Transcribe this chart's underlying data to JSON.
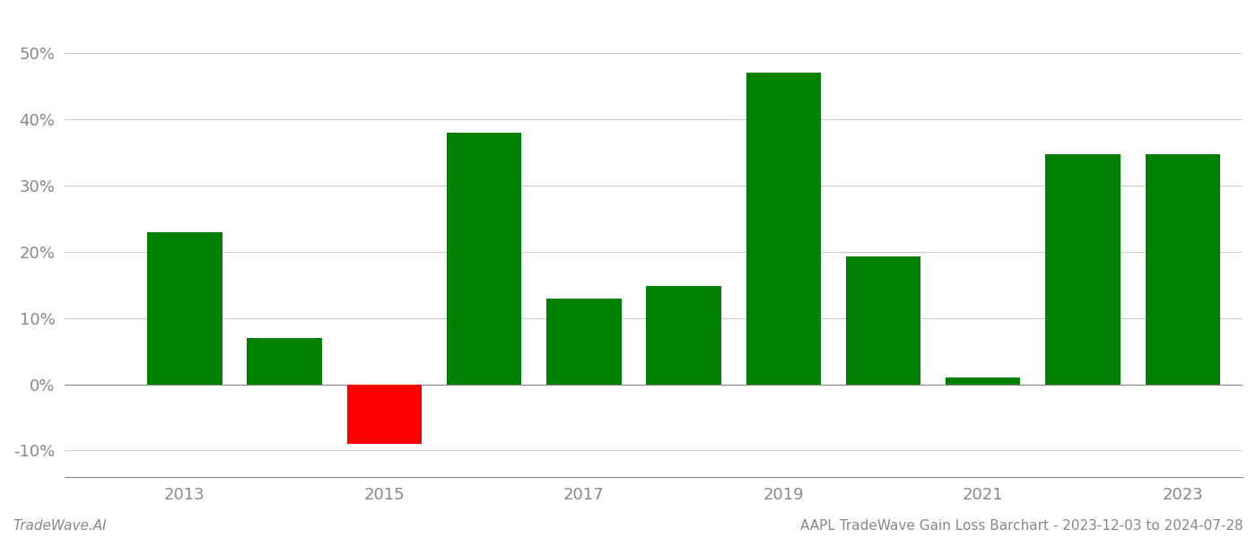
{
  "years": [
    2013,
    2014,
    2015,
    2016,
    2017,
    2018,
    2019,
    2020,
    2021,
    2022,
    2023
  ],
  "values": [
    0.23,
    0.07,
    -0.09,
    0.38,
    0.13,
    0.148,
    0.47,
    0.193,
    0.01,
    0.348,
    0.348
  ],
  "bar_colors": [
    "#008000",
    "#008000",
    "#ff0000",
    "#008000",
    "#008000",
    "#008000",
    "#008000",
    "#008000",
    "#008000",
    "#008000",
    "#008000"
  ],
  "background_color": "#ffffff",
  "yticks": [
    -0.1,
    0.0,
    0.1,
    0.2,
    0.3,
    0.4,
    0.5
  ],
  "ytick_labels": [
    "-10%",
    "0%",
    "10%",
    "20%",
    "30%",
    "40%",
    "50%"
  ],
  "xtick_positions": [
    2013,
    2015,
    2017,
    2019,
    2021,
    2023
  ],
  "xtick_labels": [
    "2013",
    "2015",
    "2017",
    "2019",
    "2021",
    "2023"
  ],
  "ylim": [
    -0.14,
    0.56
  ],
  "xlim": [
    2011.8,
    2023.6
  ],
  "footer_left": "TradeWave.AI",
  "footer_right": "AAPL TradeWave Gain Loss Barchart - 2023-12-03 to 2024-07-28",
  "bar_width": 0.75,
  "grid_color": "#cccccc",
  "axis_color": "#888888",
  "tick_color": "#888888",
  "font_color_footer": "#888888",
  "font_size_tick": 13,
  "font_size_footer": 11
}
